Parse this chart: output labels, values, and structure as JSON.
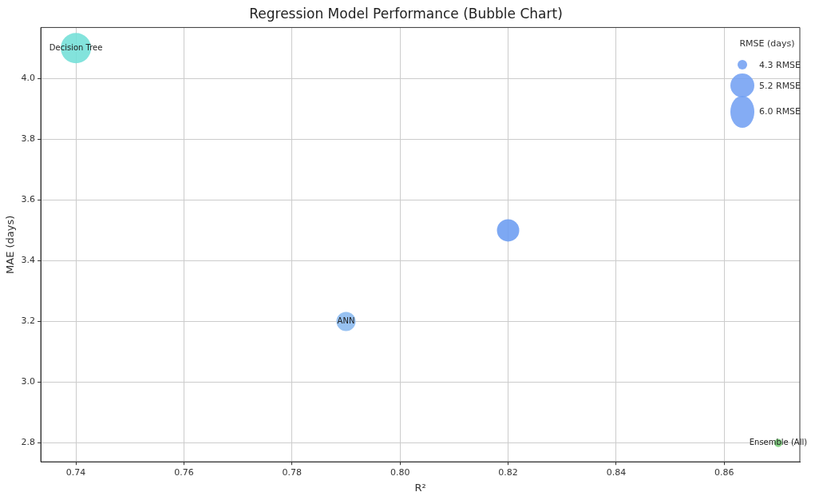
{
  "chart_data": {
    "type": "bubble",
    "title": "Regression Model Performance (Bubble Chart)",
    "xlabel": "R²",
    "ylabel": "MAE (days)",
    "legend_title": "RMSE (days)",
    "series": [
      {
        "name": "Decision Tree",
        "color": "#76e0d8",
        "x": [
          0.74
        ],
        "values": [
          4.1
        ],
        "sizes": [
          1
        ]
      },
      {
        "color": "#6f9ef2",
        "x": [
          0.82
        ],
        "values": [
          3.5
        ],
        "sizes": [
          0.54
        ]
      },
      {
        "name": "ANN",
        "color": "#8cbaf0",
        "x": [
          0.79
        ],
        "values": [
          3.2
        ],
        "sizes": [
          0.4
        ]
      },
      {
        "name": "Ensemble (All)",
        "color": "#7ad07a",
        "x": [
          0.87
        ],
        "values": [
          2.8
        ],
        "sizes": [
          0.07
        ]
      }
    ],
    "annotations": [
      "4.3 RMSE",
      "5.2 RMSE",
      "6.0 RMSE"
    ],
    "xlim": [
      0.7335,
      0.874
    ],
    "xticks": [
      {
        "value": 0.74,
        "label": "0.74"
      },
      {
        "value": 0.76,
        "label": "0.76"
      },
      {
        "value": 0.78,
        "label": "0.78"
      },
      {
        "value": 0.8,
        "label": "0.80"
      },
      {
        "value": 0.82,
        "label": "0.82"
      },
      {
        "value": 0.84,
        "label": "0.84"
      },
      {
        "value": 0.86,
        "label": "0.86"
      }
    ],
    "ylim": [
      2.738,
      4.168
    ],
    "yticks": [
      {
        "value": 2.8,
        "label": "2.8"
      },
      {
        "value": 3.0,
        "label": "3.0"
      },
      {
        "value": 3.2,
        "label": "3.2"
      },
      {
        "value": 3.4,
        "label": "3.4"
      },
      {
        "value": 3.6,
        "label": "3.6"
      },
      {
        "value": 3.8,
        "label": "3.8"
      },
      {
        "value": 4.0,
        "label": "4.0"
      }
    ],
    "grid": true
  }
}
